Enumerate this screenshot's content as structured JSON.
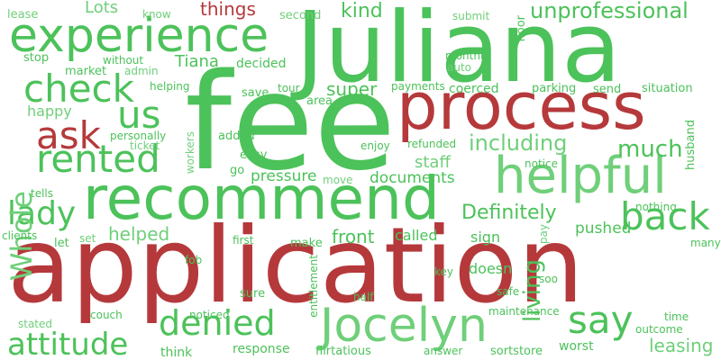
{
  "palette": {
    "green": "#4cc25a",
    "light_green": "#6fcf7a",
    "red": "#b5393b"
  },
  "words": [
    {
      "text": "Juliana",
      "color": "green"
    },
    {
      "text": "fee",
      "color": "green"
    },
    {
      "text": "application",
      "color": "red"
    },
    {
      "text": "recommend",
      "color": "green"
    },
    {
      "text": "process",
      "color": "red"
    },
    {
      "text": "experience",
      "color": "green"
    },
    {
      "text": "helpful",
      "color": "light_green"
    },
    {
      "text": "Jocelyn",
      "color": "light_green"
    },
    {
      "text": "check",
      "color": "green"
    },
    {
      "text": "rented",
      "color": "green"
    },
    {
      "text": "back",
      "color": "green"
    },
    {
      "text": "ask",
      "color": "red"
    },
    {
      "text": "us",
      "color": "green"
    },
    {
      "text": "say",
      "color": "green"
    },
    {
      "text": "denied",
      "color": "green"
    },
    {
      "text": "attitude",
      "color": "green"
    },
    {
      "text": "lady",
      "color": "green"
    },
    {
      "text": "Whole",
      "color": "light_green"
    },
    {
      "text": "including",
      "color": "light_green"
    },
    {
      "text": "much",
      "color": "green"
    },
    {
      "text": "living",
      "color": "green"
    },
    {
      "text": "unprofessional",
      "color": "green"
    },
    {
      "text": "leasing",
      "color": "light_green"
    },
    {
      "text": "Definitely",
      "color": "green"
    },
    {
      "text": "helped",
      "color": "light_green"
    },
    {
      "text": "front",
      "color": "green"
    },
    {
      "text": "super",
      "color": "green"
    },
    {
      "text": "kind",
      "color": "green"
    },
    {
      "text": "things",
      "color": "red"
    },
    {
      "text": "Lots",
      "color": "light_green"
    },
    {
      "text": "Tiana",
      "color": "green"
    },
    {
      "text": "staff",
      "color": "light_green"
    },
    {
      "text": "documents",
      "color": "green"
    },
    {
      "text": "pressure",
      "color": "green"
    },
    {
      "text": "called",
      "color": "green"
    },
    {
      "text": "pushed",
      "color": "green"
    },
    {
      "text": "sign",
      "color": "green"
    },
    {
      "text": "doesn",
      "color": "green"
    },
    {
      "text": "worst",
      "color": "green"
    },
    {
      "text": "sortstore",
      "color": "green"
    },
    {
      "text": "flirtatious",
      "color": "green"
    },
    {
      "text": "response",
      "color": "green"
    },
    {
      "text": "think",
      "color": "green"
    },
    {
      "text": "happy",
      "color": "light_green"
    },
    {
      "text": "decided",
      "color": "green"
    },
    {
      "text": "coerced",
      "color": "green"
    },
    {
      "text": "lease",
      "color": "light_green"
    },
    {
      "text": "know",
      "color": "light_green"
    },
    {
      "text": "second",
      "color": "light_green"
    },
    {
      "text": "submit",
      "color": "light_green"
    },
    {
      "text": "floor",
      "color": "green"
    },
    {
      "text": "stop",
      "color": "green"
    },
    {
      "text": "without",
      "color": "green"
    },
    {
      "text": "monthly",
      "color": "green"
    },
    {
      "text": "auto",
      "color": "light_green"
    },
    {
      "text": "market",
      "color": "green"
    },
    {
      "text": "admin",
      "color": "light_green"
    },
    {
      "text": "helping",
      "color": "green"
    },
    {
      "text": "save",
      "color": "green"
    },
    {
      "text": "tour",
      "color": "green"
    },
    {
      "text": "payments",
      "color": "green"
    },
    {
      "text": "parking",
      "color": "green"
    },
    {
      "text": "send",
      "color": "green"
    },
    {
      "text": "situation",
      "color": "green"
    },
    {
      "text": "area",
      "color": "green"
    },
    {
      "text": "personally",
      "color": "green"
    },
    {
      "text": "ticket",
      "color": "light_green"
    },
    {
      "text": "workers",
      "color": "light_green"
    },
    {
      "text": "added",
      "color": "green"
    },
    {
      "text": "easy",
      "color": "green"
    },
    {
      "text": "enjoy",
      "color": "green"
    },
    {
      "text": "refunded",
      "color": "green"
    },
    {
      "text": "notice",
      "color": "green"
    },
    {
      "text": "husband",
      "color": "green"
    },
    {
      "text": "go",
      "color": "green"
    },
    {
      "text": "move",
      "color": "light_green"
    },
    {
      "text": "tells",
      "color": "green"
    },
    {
      "text": "nothing",
      "color": "green"
    },
    {
      "text": "clients",
      "color": "green"
    },
    {
      "text": "set",
      "color": "light_green"
    },
    {
      "text": "let",
      "color": "green"
    },
    {
      "text": "first",
      "color": "green"
    },
    {
      "text": "make",
      "color": "green"
    },
    {
      "text": "pay",
      "color": "light_green"
    },
    {
      "text": "many",
      "color": "green"
    },
    {
      "text": "fob",
      "color": "green"
    },
    {
      "text": "sure",
      "color": "green"
    },
    {
      "text": "entitlement",
      "color": "green"
    },
    {
      "text": "half",
      "color": "green"
    },
    {
      "text": "key",
      "color": "green"
    },
    {
      "text": "soo",
      "color": "green"
    },
    {
      "text": "safe",
      "color": "green"
    },
    {
      "text": "couch",
      "color": "green"
    },
    {
      "text": "noticed",
      "color": "green"
    },
    {
      "text": "maintenance",
      "color": "green"
    },
    {
      "text": "time",
      "color": "green"
    },
    {
      "text": "stated",
      "color": "light_green"
    },
    {
      "text": "outcome",
      "color": "green"
    },
    {
      "text": "answer",
      "color": "green"
    }
  ]
}
